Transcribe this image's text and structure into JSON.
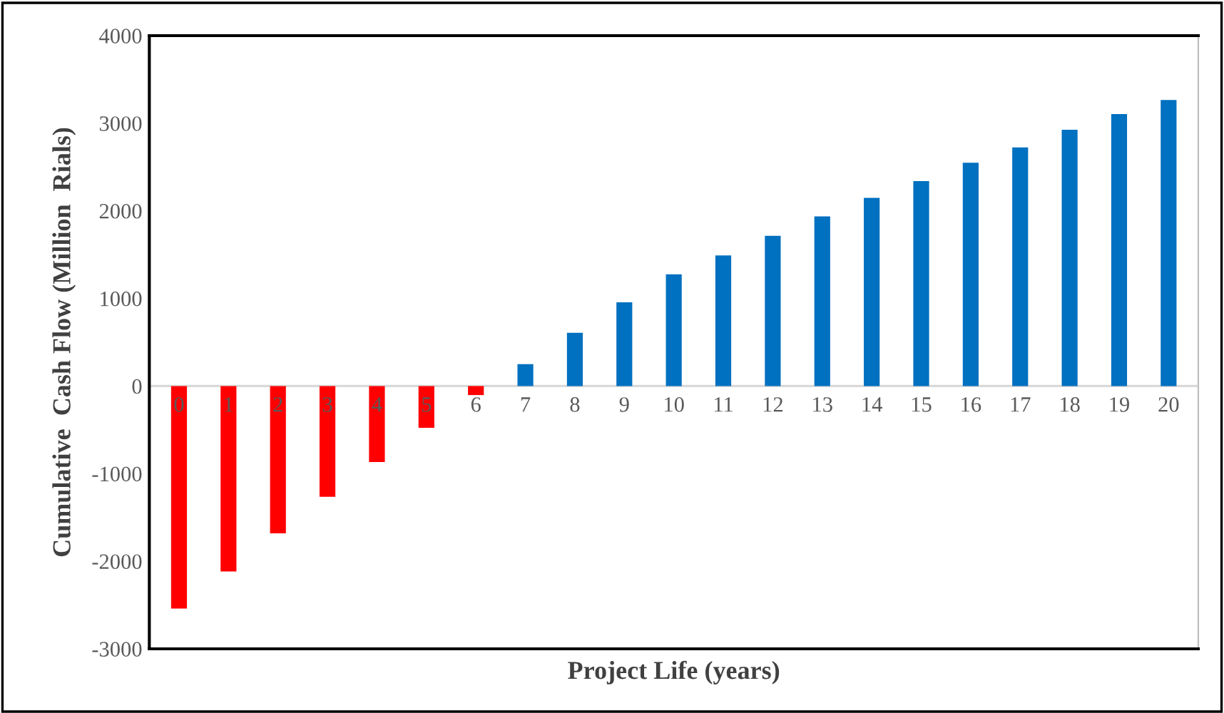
{
  "chart_data": {
    "type": "bar",
    "xlabel": "Project Life (years)",
    "ylabel": "Cumulative  Cash Flow (Million  Rials)",
    "categories": [
      "0",
      "1",
      "2",
      "3",
      "4",
      "5",
      "6",
      "7",
      "8",
      "9",
      "10",
      "11",
      "12",
      "13",
      "14",
      "15",
      "16",
      "17",
      "18",
      "19",
      "20"
    ],
    "values": [
      -2540,
      -2116,
      -1682,
      -1264,
      -868,
      -477,
      -103,
      250,
      608,
      955,
      1275,
      1492,
      1715,
      1937,
      2149,
      2339,
      2550,
      2724,
      2925,
      3104,
      3266
    ],
    "colors": [
      "#ff0000",
      "#ff0000",
      "#ff0000",
      "#ff0000",
      "#ff0000",
      "#ff0000",
      "#ff0000",
      "#0070c0",
      "#0070c0",
      "#0070c0",
      "#0070c0",
      "#0070c0",
      "#0070c0",
      "#0070c0",
      "#0070c0",
      "#0070c0",
      "#0070c0",
      "#0070c0",
      "#0070c0",
      "#0070c0",
      "#0070c0"
    ],
    "ylim": [
      -3000,
      4000
    ],
    "yticks": [
      -3000,
      -2000,
      -1000,
      0,
      1000,
      2000,
      3000,
      4000
    ],
    "grid": false,
    "legend": false
  }
}
